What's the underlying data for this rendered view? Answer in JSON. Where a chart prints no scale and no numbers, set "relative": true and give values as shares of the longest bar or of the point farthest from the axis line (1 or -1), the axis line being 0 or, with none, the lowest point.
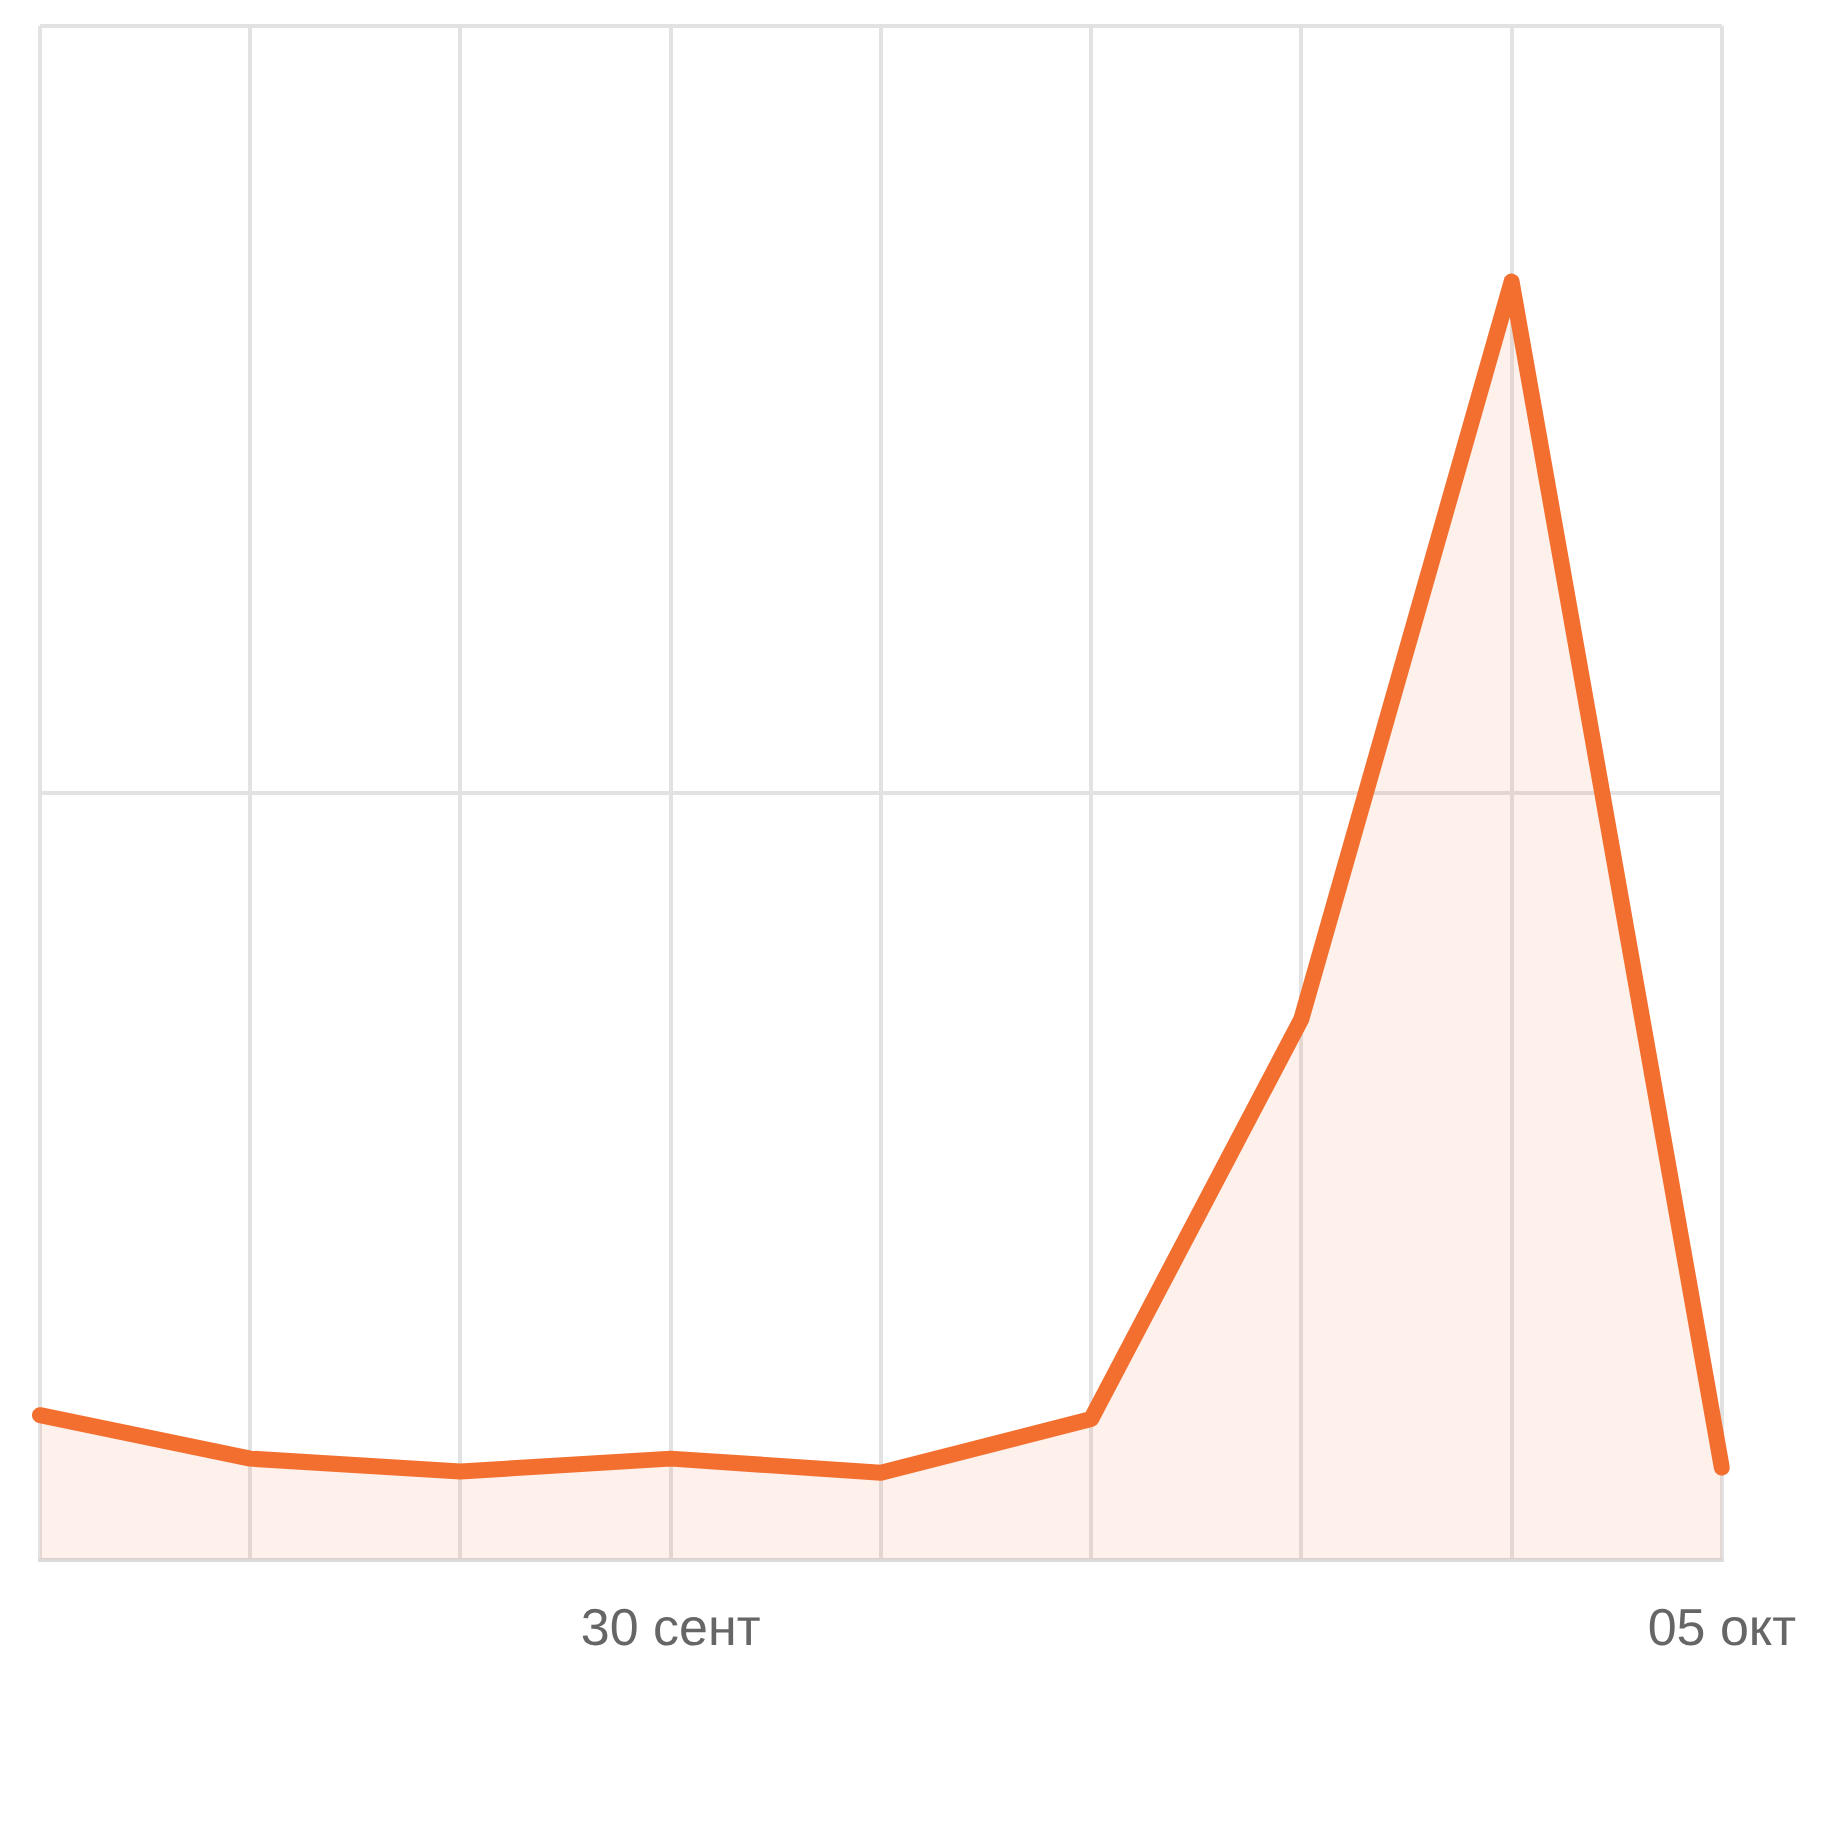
{
  "chart_data": {
    "type": "area",
    "relative": true,
    "categories": [
      null,
      null,
      null,
      "30 сент",
      null,
      null,
      null,
      null,
      "05 окт"
    ],
    "series": [
      {
        "color": "#f36f2f",
        "values": [
          0.113,
          0.079,
          0.069,
          0.079,
          0.068,
          0.11,
          0.423,
          1,
          0.072
        ]
      }
    ],
    "grid": true,
    "legend": false,
    "marker": "none",
    "line_style": "solid"
  }
}
